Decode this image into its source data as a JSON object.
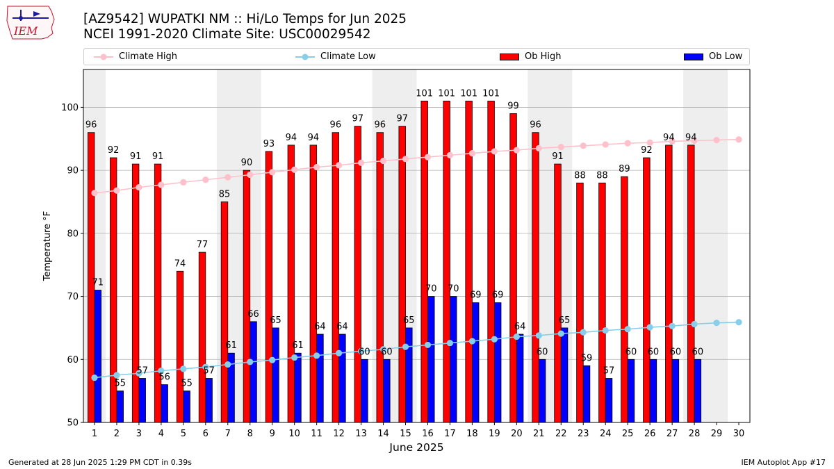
{
  "header": {
    "logo_text": "IEM",
    "title_line1": "[AZ9542] WUPATKI NM :: Hi/Lo Temps for Jun 2025",
    "title_line2": "NCEI 1991-2020 Climate Site: USC00029542"
  },
  "legend": [
    {
      "label": "Climate High",
      "kind": "line",
      "color": "#ffc0cb"
    },
    {
      "label": "Climate Low",
      "kind": "line",
      "color": "#87ceeb"
    },
    {
      "label": "Ob High",
      "kind": "bar",
      "color": "#ff0000"
    },
    {
      "label": "Ob Low",
      "kind": "bar",
      "color": "#0000ff"
    }
  ],
  "footer": {
    "left": "Generated at 28 Jun 2025 1:29 PM CDT in 0.39s",
    "right": "IEM Autoplot App #17"
  },
  "chart_data": {
    "type": "bar",
    "xlabel": "June 2025",
    "ylabel": "Temperature °F",
    "ylim": [
      50,
      106
    ],
    "yticks": [
      50,
      60,
      70,
      80,
      90,
      100
    ],
    "grid": "horizontal",
    "legend_position": "top",
    "x": [
      1,
      2,
      3,
      4,
      5,
      6,
      7,
      8,
      9,
      10,
      11,
      12,
      13,
      14,
      15,
      16,
      17,
      18,
      19,
      20,
      21,
      22,
      23,
      24,
      25,
      26,
      27,
      28,
      29,
      30
    ],
    "weekend_bands": [
      [
        1
      ],
      [
        7,
        8
      ],
      [
        14,
        15
      ],
      [
        21,
        22
      ],
      [
        28,
        29
      ]
    ],
    "series": [
      {
        "name": "Ob High",
        "kind": "bar",
        "color": "#ff0000",
        "values": [
          96,
          92,
          91,
          91,
          74,
          77,
          85,
          90,
          93,
          94,
          94,
          96,
          97,
          96,
          97,
          101,
          101,
          101,
          101,
          99,
          96,
          91,
          88,
          88,
          89,
          92,
          94,
          94,
          null,
          null
        ]
      },
      {
        "name": "Ob Low",
        "kind": "bar",
        "color": "#0000ff",
        "values": [
          71,
          55,
          57,
          56,
          55,
          57,
          61,
          66,
          65,
          61,
          64,
          64,
          60,
          60,
          65,
          70,
          70,
          69,
          69,
          64,
          60,
          65,
          59,
          57,
          60,
          60,
          60,
          60,
          null,
          null
        ]
      },
      {
        "name": "Climate High",
        "kind": "line",
        "color": "#ffc0cb",
        "values": [
          86.4,
          86.8,
          87.3,
          87.7,
          88.1,
          88.5,
          88.9,
          89.3,
          89.7,
          90.1,
          90.5,
          90.8,
          91.2,
          91.5,
          91.8,
          92.1,
          92.4,
          92.7,
          93.0,
          93.2,
          93.5,
          93.7,
          93.9,
          94.1,
          94.3,
          94.4,
          94.6,
          94.7,
          94.8,
          94.9
        ]
      },
      {
        "name": "Climate Low",
        "kind": "line",
        "color": "#87ceeb",
        "values": [
          57.1,
          57.5,
          57.8,
          58.2,
          58.5,
          58.8,
          59.2,
          59.6,
          59.9,
          60.3,
          60.6,
          61.0,
          61.3,
          61.6,
          62.0,
          62.3,
          62.6,
          62.9,
          63.2,
          63.6,
          63.8,
          64.1,
          64.3,
          64.6,
          64.8,
          65.1,
          65.3,
          65.6,
          65.8,
          65.9
        ]
      }
    ]
  }
}
